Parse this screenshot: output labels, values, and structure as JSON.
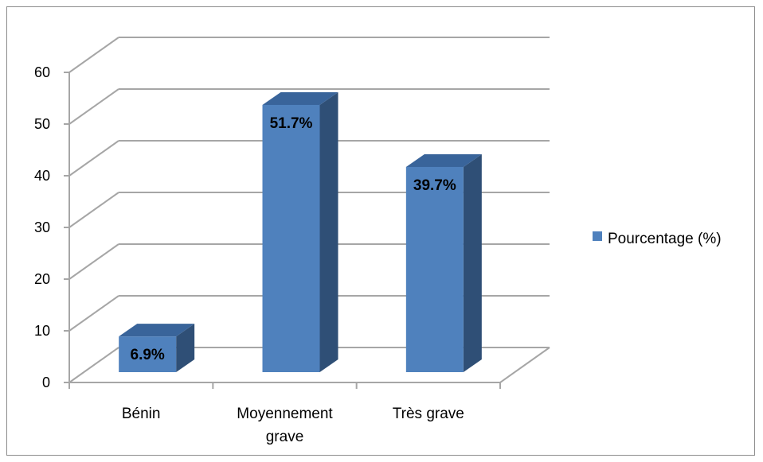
{
  "chart_data": {
    "type": "bar",
    "style": "3d-column",
    "categories": [
      "Bénin",
      [
        "Moyennement",
        "grave"
      ],
      "Très grave"
    ],
    "series": [
      {
        "name": "Pourcentage (%)",
        "values": [
          6.9,
          51.7,
          39.7
        ],
        "data_labels": [
          "6.9%",
          "51.7%",
          "39.7%"
        ],
        "color": "#4f81bd"
      }
    ],
    "yticks": [
      0,
      10,
      20,
      30,
      40,
      50,
      60
    ],
    "ylim": [
      0,
      60
    ],
    "grid": true,
    "legend": "right",
    "colors": {
      "front": "#4f81bd",
      "side": "#2f4f76",
      "top": "#39649a",
      "grid": "#a6a6a6",
      "text": "#000000"
    }
  }
}
